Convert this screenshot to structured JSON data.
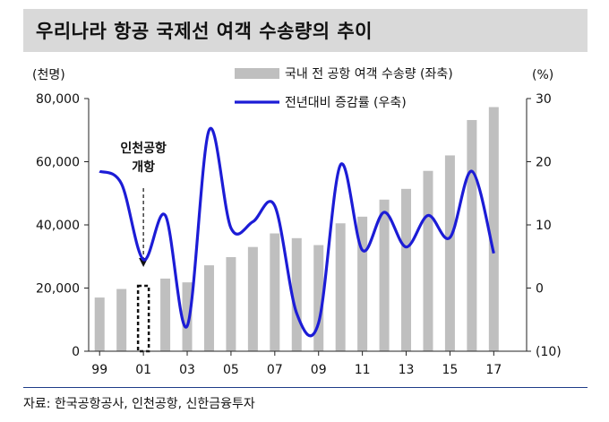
{
  "title": "우리나라 항공 국제선 여객 수송량의 추이",
  "source": "자료: 한국공항공사, 인천공항, 신한금융투자",
  "chart_data": {
    "type": "bar+line",
    "left_axis": {
      "unit_label": "(천명)",
      "range": [
        0,
        80000
      ],
      "ticks": [
        "0",
        "20,000",
        "40,000",
        "60,000",
        "80,000"
      ]
    },
    "right_axis": {
      "unit_label": "(%)",
      "range": [
        -10,
        30
      ],
      "ticks": [
        "(10)",
        "0",
        "10",
        "20",
        "30"
      ]
    },
    "x_tick_labels": [
      "99",
      "01",
      "03",
      "05",
      "07",
      "09",
      "11",
      "13",
      "15",
      "17"
    ],
    "years": [
      1999,
      2000,
      2001,
      2002,
      2003,
      2004,
      2005,
      2006,
      2007,
      2008,
      2009,
      2010,
      2011,
      2012,
      2013,
      2014,
      2015,
      2016,
      2017,
      2018
    ],
    "series": [
      {
        "name": "국내 전 공항 여객 수송량 (좌축)",
        "type": "bar",
        "axis": "left",
        "color": "#bfbfbf",
        "values": [
          17000,
          19700,
          20700,
          23000,
          21800,
          27200,
          29800,
          33000,
          37300,
          35800,
          33600,
          40500,
          42600,
          48000,
          51400,
          57100,
          62000,
          73200,
          77300,
          0
        ]
      },
      {
        "name": "전년대비 증감률 (우축)",
        "type": "line",
        "axis": "right",
        "color": "#1c1cd6",
        "values": [
          18.5,
          16.5,
          4.5,
          11.5,
          -6.0,
          25.0,
          9.5,
          10.5,
          13.0,
          -4.0,
          -5.5,
          19.5,
          6.0,
          12.0,
          6.5,
          11.5,
          8.0,
          18.5,
          5.5
        ]
      }
    ],
    "annotation": {
      "text_line1": "인천공항",
      "text_line2": "개항",
      "year": 2001
    },
    "legend_position": "top-right",
    "grid": false
  }
}
